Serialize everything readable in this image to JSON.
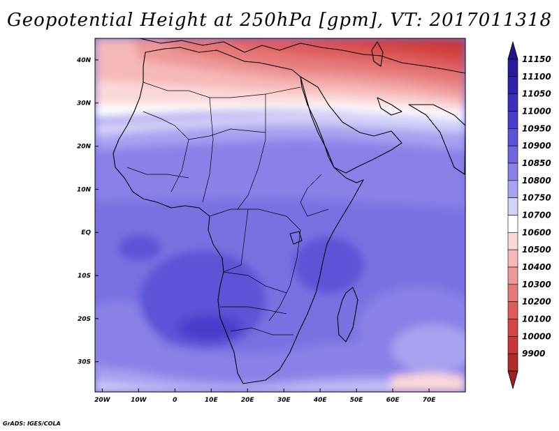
{
  "title": "Geopotential Height at 250hPa [gpm], VT: 2017011318",
  "credit": "GrADS: IGES/COLA",
  "map": {
    "variable": "Geopotential Height",
    "level": "250hPa",
    "units": "gpm",
    "valid_time": "2017011318",
    "lon_range": [
      -22,
      80
    ],
    "lat_range": [
      -37,
      45
    ],
    "lon_ticks": [
      {
        "value": -20,
        "label": "20W"
      },
      {
        "value": -10,
        "label": "10W"
      },
      {
        "value": 0,
        "label": "0"
      },
      {
        "value": 10,
        "label": "10E"
      },
      {
        "value": 20,
        "label": "20E"
      },
      {
        "value": 30,
        "label": "30E"
      },
      {
        "value": 40,
        "label": "40E"
      },
      {
        "value": 50,
        "label": "50E"
      },
      {
        "value": 60,
        "label": "60E"
      },
      {
        "value": 70,
        "label": "70E"
      }
    ],
    "lat_ticks": [
      {
        "value": 40,
        "label": "40N"
      },
      {
        "value": 30,
        "label": "30N"
      },
      {
        "value": 20,
        "label": "20N"
      },
      {
        "value": 10,
        "label": "10N"
      },
      {
        "value": 0,
        "label": "EQ"
      },
      {
        "value": -10,
        "label": "10S"
      },
      {
        "value": -20,
        "label": "20S"
      },
      {
        "value": -30,
        "label": "30S"
      }
    ]
  },
  "colorbar": {
    "levels": [
      {
        "label": "11150",
        "color": "#2a1a9a"
      },
      {
        "label": "11100",
        "color": "#3320ad"
      },
      {
        "label": "11050",
        "color": "#3d2dbd"
      },
      {
        "label": "11000",
        "color": "#4a3ccb"
      },
      {
        "label": "10950",
        "color": "#5c52d6"
      },
      {
        "label": "10900",
        "color": "#7064df"
      },
      {
        "label": "10850",
        "color": "#8a80e8"
      },
      {
        "label": "10800",
        "color": "#a8a1f0"
      },
      {
        "label": "10750",
        "color": "#d4d2f8"
      },
      {
        "label": "10700",
        "color": "#ffffff"
      },
      {
        "label": "10600",
        "color": "#fbd8d8"
      },
      {
        "label": "10500",
        "color": "#f6b8b8"
      },
      {
        "label": "10400",
        "color": "#ee9898"
      },
      {
        "label": "10300",
        "color": "#e67878"
      },
      {
        "label": "10200",
        "color": "#de5c5c"
      },
      {
        "label": "10100",
        "color": "#d64545"
      },
      {
        "label": "10000",
        "color": "#c83838"
      },
      {
        "label": "9900",
        "color": "#b22c2c"
      }
    ],
    "top_cap_color": "#221488",
    "bottom_cap_color": "#a02020"
  }
}
